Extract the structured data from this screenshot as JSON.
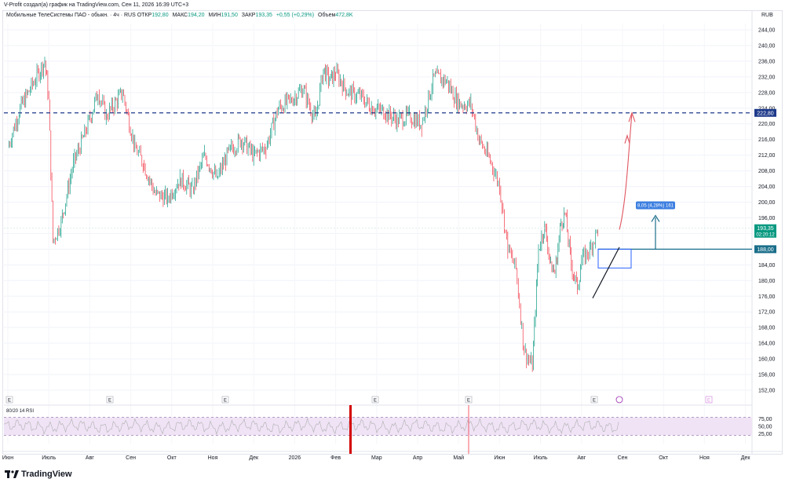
{
  "caption": "V-Profit создал(а) график на TradingView.com, Сен 11, 2026 16:39 UTC+3",
  "legend": {
    "title": "Мобильные ТелеСистемы ПАО - обыкн. · 4ч · RUS",
    "open_label": "ОТКР",
    "open": "192,80",
    "high_label": "МАКС",
    "high": "194,20",
    "low_label": "МИН",
    "low": "191,50",
    "close_label": "ЗАКР",
    "close": "193,35",
    "change": "+0,55 (+0,29%)",
    "volume_label": "Объем",
    "volume": "472,8K"
  },
  "currency": "RUB",
  "rsi_label": "80/20 14 RSI",
  "brand": "TradingView",
  "colors": {
    "up": "#089981",
    "down": "#f23645",
    "dashed": "#1e3a8a",
    "arrow": "#e05560",
    "measure": "#1a6e8a",
    "rsi_line": "#b0b0b0",
    "rsi_band": "#efe3f5",
    "rsi_highlight": "#d40000"
  },
  "icons": [
    "event-e-icon",
    "dividend-icon",
    "tradingview-logo-icon"
  ],
  "chart_data": {
    "type": "line",
    "y_axis_ticks": [
      "244,00",
      "240,00",
      "236,00",
      "232,00",
      "228,00",
      "224,00",
      "220,00",
      "216,00",
      "212,00",
      "208,00",
      "204,00",
      "200,00",
      "196,00",
      "192,00",
      "188,00",
      "184,00",
      "180,00",
      "176,00",
      "172,00",
      "168,00",
      "164,00",
      "160,00",
      "156,00",
      "152,00"
    ],
    "ylim": [
      150,
      246
    ],
    "x_axis_labels": [
      "Июн",
      "Июль",
      "Авг",
      "Сен",
      "Окт",
      "Ноя",
      "Дек",
      "2026",
      "Фев",
      "Мар",
      "Апр",
      "Май",
      "Июн",
      "Июль",
      "Авг",
      "Сен",
      "Окт",
      "Ноя",
      "Дек"
    ],
    "price_series": {
      "x_month_index": [
        0,
        0.3,
        0.6,
        0.9,
        1.0,
        1.1,
        1.3,
        1.6,
        1.9,
        2.2,
        2.4,
        2.8,
        3.1,
        3.3,
        3.6,
        3.9,
        4.2,
        4.5,
        4.8,
        5.1,
        5.4,
        5.7,
        6.0,
        6.3,
        6.6,
        6.9,
        7.2,
        7.5,
        7.7,
        7.85,
        8.0,
        8.3,
        8.6,
        8.9,
        9.2,
        9.5,
        9.8,
        10.1,
        10.4,
        10.7,
        11.0,
        11.3,
        11.5,
        11.8,
        12.0,
        12.2,
        12.4,
        12.6,
        12.8,
        12.95,
        13.1,
        13.25,
        13.35,
        13.5,
        13.6,
        13.75,
        13.9,
        14.0,
        14.2,
        14.4,
        14.6,
        14.75,
        14.9,
        15.0
      ],
      "close": [
        214,
        224,
        230,
        236,
        226,
        190,
        195,
        210,
        218,
        228,
        222,
        228,
        214,
        210,
        202,
        201,
        206,
        203,
        212,
        206,
        213,
        216,
        212,
        214,
        224,
        226,
        229,
        221,
        234,
        231,
        233,
        228,
        227,
        224,
        223,
        221,
        222,
        220,
        232,
        231,
        225,
        225,
        216,
        210,
        204,
        188,
        183,
        162,
        158,
        188,
        194,
        184,
        182,
        195,
        197,
        184,
        178,
        185,
        188,
        193,
        193.35,
        193.35,
        193.35,
        193.35
      ]
    },
    "levels": [
      {
        "price": 222.8,
        "label": "222,80",
        "style": "dashed"
      },
      {
        "price": 188.0,
        "label": "188,00",
        "style": "solid"
      }
    ],
    "last_price": {
      "price": 193.35,
      "label": "193,35",
      "countdown": "02:20:12"
    },
    "measure_label": "8,05 (4,28%) 161",
    "rsi": {
      "levels": [
        "75,00",
        "50,00",
        "25,00"
      ],
      "upper": 80,
      "lower": 20
    }
  }
}
